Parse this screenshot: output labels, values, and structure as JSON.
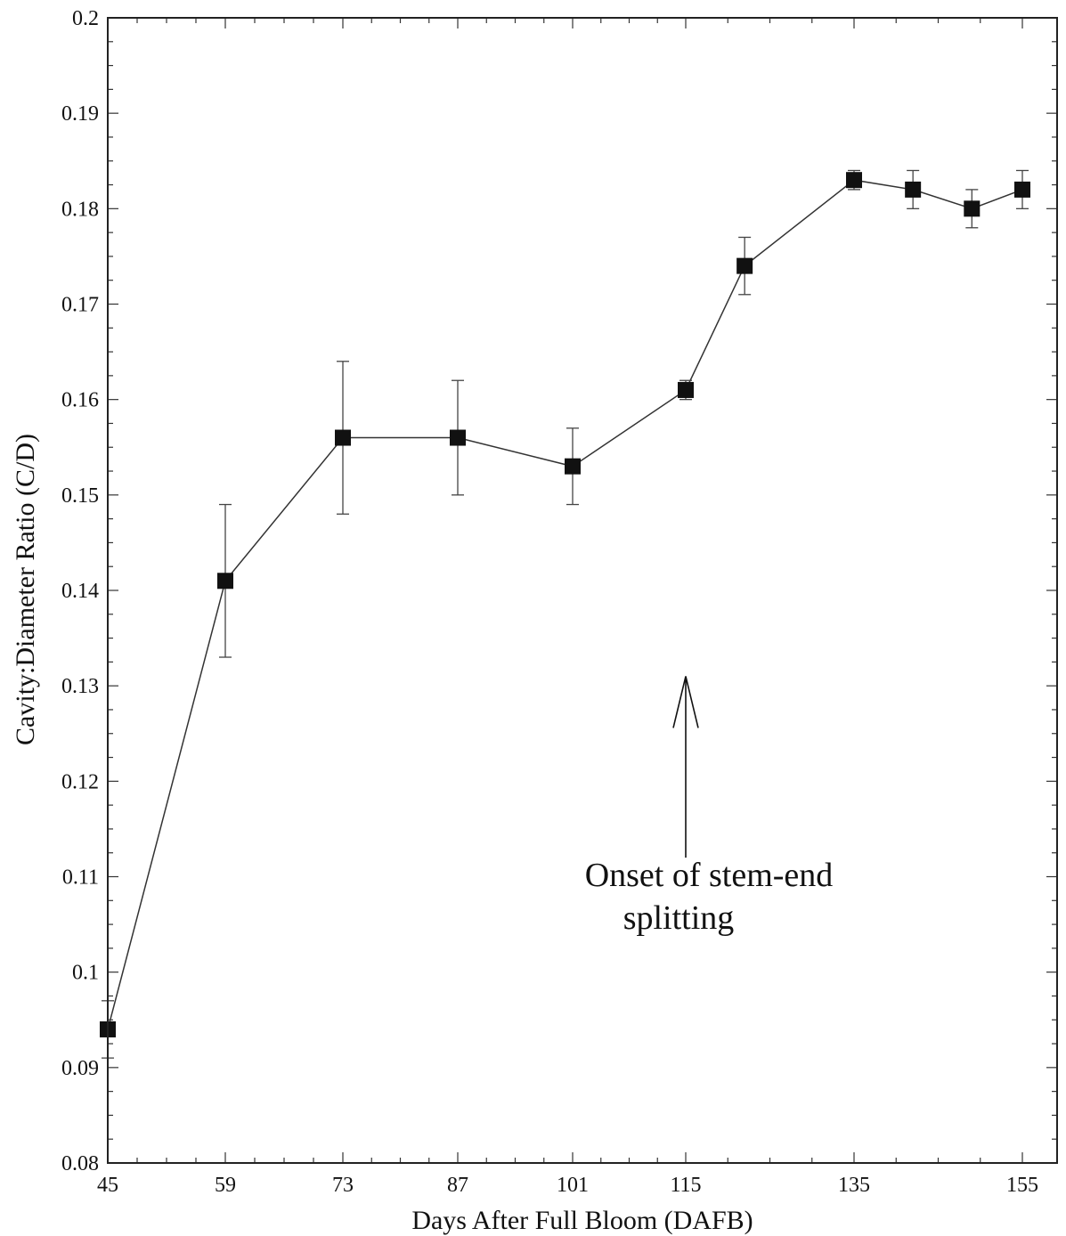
{
  "chart_data": {
    "type": "line",
    "title": "",
    "xlabel": "Days After Full Bloom (DAFB)",
    "ylabel": "Cavity:Diameter Ratio (C/D)",
    "xlim": [
      45,
      157
    ],
    "ylim": [
      0.08,
      0.2
    ],
    "grid": false,
    "legend": "none",
    "x_ticks": [
      45,
      59,
      73,
      87,
      101,
      115,
      135,
      155
    ],
    "y_ticks": [
      0.08,
      0.09,
      0.1,
      0.11,
      0.12,
      0.13,
      0.14,
      0.15,
      0.16,
      0.17,
      0.18,
      0.19,
      0.2
    ],
    "x_tick_labels": [
      "45",
      "59",
      "73",
      "87",
      "101",
      "115",
      "135",
      "155"
    ],
    "y_tick_labels": [
      "0.08",
      "0.09",
      "0.1",
      "0.11",
      "0.12",
      "0.13",
      "0.14",
      "0.15",
      "0.16",
      "0.17",
      "0.18",
      "0.19",
      "0.2"
    ],
    "series": [
      {
        "x": [
          45,
          59,
          73,
          87,
          101,
          115,
          122,
          135,
          142,
          149,
          155
        ],
        "y": [
          0.094,
          0.141,
          0.156,
          0.156,
          0.153,
          0.161,
          0.174,
          0.183,
          0.182,
          0.18,
          0.182
        ],
        "err_low": [
          0.091,
          0.133,
          0.148,
          0.15,
          0.149,
          0.16,
          0.171,
          0.182,
          0.18,
          0.178,
          0.18
        ],
        "err_high": [
          0.097,
          0.149,
          0.164,
          0.162,
          0.157,
          0.162,
          0.177,
          0.184,
          0.184,
          0.182,
          0.184
        ],
        "color": "#111111",
        "marker": "square"
      }
    ],
    "annotations": [
      {
        "text_lines": [
          "Onset of stem-end",
          "splitting"
        ],
        "arrow_to_x": 115,
        "arrow_to_y": 0.131,
        "arrow_from_y": 0.112
      }
    ]
  }
}
